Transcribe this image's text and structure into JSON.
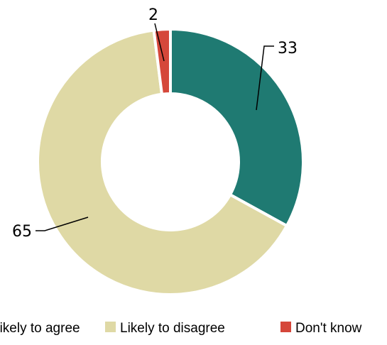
{
  "chart_data": {
    "type": "donut",
    "categories": [
      "Likely to agree",
      "Likely to disagree",
      "Don't know"
    ],
    "values": [
      33,
      65,
      2
    ],
    "colors": [
      "#1f7a72",
      "#dfd9a5",
      "#d5473a"
    ],
    "data_labels": [
      "33",
      "65",
      "2"
    ],
    "legend_position": "bottom",
    "title": "",
    "start_angle": "12 o'clock",
    "direction": "clockwise"
  }
}
